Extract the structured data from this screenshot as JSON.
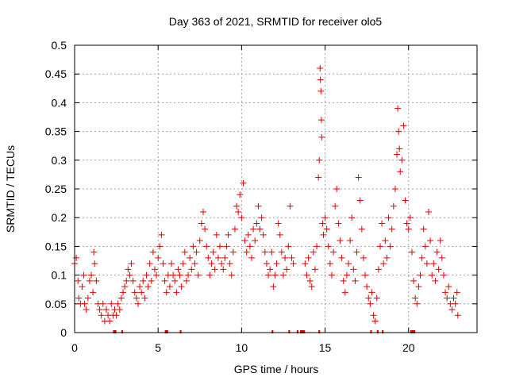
{
  "chart_data": {
    "type": "scatter",
    "title": "Day 363 of 2021, SRMTID for receiver olo5",
    "xlabel": "GPS time / hours",
    "ylabel": "SRMTID / TECUs",
    "xlim": [
      0,
      24.1
    ],
    "ylim": [
      0,
      0.5
    ],
    "xticks": [
      0,
      5,
      10,
      15,
      20
    ],
    "xtick_labels": [
      "0",
      "5",
      "10",
      "15",
      "20"
    ],
    "yticks": [
      0,
      0.05,
      0.1,
      0.15,
      0.2,
      0.25,
      0.3,
      0.35,
      0.4,
      0.45,
      0.5
    ],
    "ytick_labels": [
      "0",
      "0.05",
      "0.1",
      "0.15",
      "0.2",
      "0.25",
      "0.3",
      "0.35",
      "0.4",
      "0.45",
      "0.5"
    ],
    "grid": true,
    "marker": "+",
    "series": [
      {
        "name": "SRMTID",
        "color": "#e00000",
        "points": [
          [
            0.0,
            0.12
          ],
          [
            0.1,
            0.13
          ],
          [
            0.2,
            0.09
          ],
          [
            0.25,
            0.06
          ],
          [
            0.35,
            0.05
          ],
          [
            0.45,
            0.08
          ],
          [
            0.55,
            0.1
          ],
          [
            0.6,
            0.05
          ],
          [
            0.7,
            0.04
          ],
          [
            0.8,
            0.06
          ],
          [
            0.9,
            0.09
          ],
          [
            1.0,
            0.1
          ],
          [
            1.1,
            0.07
          ],
          [
            1.15,
            0.14
          ],
          [
            1.2,
            0.12
          ],
          [
            1.3,
            0.09
          ],
          [
            1.4,
            0.05
          ],
          [
            1.5,
            0.04
          ],
          [
            1.6,
            0.03
          ],
          [
            1.7,
            0.05
          ],
          [
            1.8,
            0.02
          ],
          [
            1.9,
            0.04
          ],
          [
            2.0,
            0.03
          ],
          [
            2.1,
            0.02
          ],
          [
            2.2,
            0.05
          ],
          [
            2.3,
            0.03
          ],
          [
            2.4,
            0.04
          ],
          [
            2.5,
            0.03
          ],
          [
            2.6,
            0.05
          ],
          [
            2.7,
            0.04
          ],
          [
            2.8,
            0.06
          ],
          [
            2.9,
            0.07
          ],
          [
            3.0,
            0.08
          ],
          [
            3.1,
            0.09
          ],
          [
            3.2,
            0.11
          ],
          [
            3.3,
            0.1
          ],
          [
            3.4,
            0.12
          ],
          [
            3.5,
            0.09
          ],
          [
            3.6,
            0.07
          ],
          [
            3.7,
            0.06
          ],
          [
            3.8,
            0.05
          ],
          [
            3.9,
            0.08
          ],
          [
            4.0,
            0.07
          ],
          [
            4.1,
            0.09
          ],
          [
            4.2,
            0.06
          ],
          [
            4.3,
            0.1
          ],
          [
            4.4,
            0.08
          ],
          [
            4.5,
            0.12
          ],
          [
            4.6,
            0.09
          ],
          [
            4.7,
            0.14
          ],
          [
            4.8,
            0.11
          ],
          [
            4.9,
            0.1
          ],
          [
            5.0,
            0.13
          ],
          [
            5.1,
            0.15
          ],
          [
            5.2,
            0.17
          ],
          [
            5.3,
            0.12
          ],
          [
            5.4,
            0.09
          ],
          [
            5.5,
            0.07
          ],
          [
            5.6,
            0.1
          ],
          [
            5.7,
            0.08
          ],
          [
            5.8,
            0.12
          ],
          [
            5.9,
            0.1
          ],
          [
            6.0,
            0.09
          ],
          [
            6.1,
            0.07
          ],
          [
            6.2,
            0.11
          ],
          [
            6.3,
            0.1
          ],
          [
            6.4,
            0.08
          ],
          [
            6.5,
            0.12
          ],
          [
            6.6,
            0.14
          ],
          [
            6.7,
            0.09
          ],
          [
            6.8,
            0.1
          ],
          [
            6.9,
            0.13
          ],
          [
            7.0,
            0.11
          ],
          [
            7.1,
            0.15
          ],
          [
            7.2,
            0.12
          ],
          [
            7.3,
            0.14
          ],
          [
            7.4,
            0.1
          ],
          [
            7.5,
            0.16
          ],
          [
            7.6,
            0.19
          ],
          [
            7.7,
            0.21
          ],
          [
            7.8,
            0.18
          ],
          [
            7.9,
            0.15
          ],
          [
            8.0,
            0.13
          ],
          [
            8.1,
            0.1
          ],
          [
            8.2,
            0.12
          ],
          [
            8.3,
            0.14
          ],
          [
            8.4,
            0.11
          ],
          [
            8.5,
            0.17
          ],
          [
            8.6,
            0.13
          ],
          [
            8.7,
            0.15
          ],
          [
            8.8,
            0.12
          ],
          [
            8.9,
            0.11
          ],
          [
            9.0,
            0.13
          ],
          [
            9.1,
            0.15
          ],
          [
            9.2,
            0.17
          ],
          [
            9.3,
            0.12
          ],
          [
            9.4,
            0.1
          ],
          [
            9.5,
            0.14
          ],
          [
            9.6,
            0.18
          ],
          [
            9.7,
            0.22
          ],
          [
            9.8,
            0.21
          ],
          [
            9.9,
            0.24
          ],
          [
            10.0,
            0.2
          ],
          [
            10.1,
            0.26
          ],
          [
            10.2,
            0.16
          ],
          [
            10.3,
            0.14
          ],
          [
            10.4,
            0.17
          ],
          [
            10.5,
            0.15
          ],
          [
            10.6,
            0.13
          ],
          [
            10.7,
            0.18
          ],
          [
            10.8,
            0.16
          ],
          [
            10.9,
            0.19
          ],
          [
            11.0,
            0.22
          ],
          [
            11.1,
            0.18
          ],
          [
            11.2,
            0.2
          ],
          [
            11.3,
            0.17
          ],
          [
            11.4,
            0.14
          ],
          [
            11.5,
            0.12
          ],
          [
            11.6,
            0.1
          ],
          [
            11.7,
            0.11
          ],
          [
            11.8,
            0.14
          ],
          [
            11.9,
            0.08
          ],
          [
            12.0,
            0.1
          ],
          [
            12.1,
            0.12
          ],
          [
            12.2,
            0.19
          ],
          [
            12.3,
            0.17
          ],
          [
            12.4,
            0.14
          ],
          [
            12.5,
            0.1
          ],
          [
            12.6,
            0.13
          ],
          [
            12.7,
            0.11
          ],
          [
            12.8,
            0.15
          ],
          [
            12.9,
            0.22
          ],
          [
            13.0,
            0.13
          ],
          [
            13.1,
            0.12
          ],
          [
            13.8,
            0.12
          ],
          [
            13.9,
            0.1
          ],
          [
            14.0,
            0.13
          ],
          [
            14.1,
            0.09
          ],
          [
            14.2,
            0.08
          ],
          [
            14.3,
            0.14
          ],
          [
            14.4,
            0.11
          ],
          [
            14.5,
            0.15
          ],
          [
            14.6,
            0.27
          ],
          [
            14.65,
            0.3
          ],
          [
            14.7,
            0.46
          ],
          [
            14.72,
            0.44
          ],
          [
            14.75,
            0.42
          ],
          [
            14.78,
            0.37
          ],
          [
            14.8,
            0.34
          ],
          [
            14.85,
            0.19
          ],
          [
            14.9,
            0.17
          ],
          [
            15.0,
            0.2
          ],
          [
            15.1,
            0.18
          ],
          [
            15.2,
            0.15
          ],
          [
            15.3,
            0.12
          ],
          [
            15.4,
            0.1
          ],
          [
            15.5,
            0.14
          ],
          [
            15.6,
            0.22
          ],
          [
            15.7,
            0.25
          ],
          [
            15.8,
            0.19
          ],
          [
            15.9,
            0.16
          ],
          [
            16.0,
            0.13
          ],
          [
            16.1,
            0.09
          ],
          [
            16.2,
            0.07
          ],
          [
            16.3,
            0.1
          ],
          [
            16.4,
            0.12
          ],
          [
            16.5,
            0.16
          ],
          [
            16.6,
            0.2
          ],
          [
            16.7,
            0.11
          ],
          [
            16.8,
            0.09
          ],
          [
            16.9,
            0.14
          ],
          [
            17.0,
            0.27
          ],
          [
            17.1,
            0.23
          ],
          [
            17.2,
            0.18
          ],
          [
            17.3,
            0.13
          ],
          [
            17.4,
            0.1
          ],
          [
            17.5,
            0.08
          ],
          [
            17.6,
            0.06
          ],
          [
            17.7,
            0.05
          ],
          [
            17.8,
            0.07
          ],
          [
            17.9,
            0.03
          ],
          [
            18.0,
            0.02
          ],
          [
            18.1,
            0.06
          ],
          [
            18.2,
            0.11
          ],
          [
            18.3,
            0.15
          ],
          [
            18.4,
            0.19
          ],
          [
            18.5,
            0.12
          ],
          [
            18.6,
            0.16
          ],
          [
            18.7,
            0.13
          ],
          [
            18.8,
            0.2
          ],
          [
            18.9,
            0.15
          ],
          [
            19.0,
            0.18
          ],
          [
            19.1,
            0.22
          ],
          [
            19.2,
            0.25
          ],
          [
            19.3,
            0.31
          ],
          [
            19.35,
            0.39
          ],
          [
            19.4,
            0.35
          ],
          [
            19.45,
            0.32
          ],
          [
            19.5,
            0.28
          ],
          [
            19.6,
            0.3
          ],
          [
            19.7,
            0.36
          ],
          [
            19.8,
            0.23
          ],
          [
            19.9,
            0.19
          ],
          [
            20.0,
            0.18
          ],
          [
            20.1,
            0.2
          ],
          [
            20.2,
            0.14
          ],
          [
            20.3,
            0.09
          ],
          [
            20.4,
            0.06
          ],
          [
            20.5,
            0.05
          ],
          [
            20.6,
            0.08
          ],
          [
            20.7,
            0.1
          ],
          [
            20.8,
            0.13
          ],
          [
            20.9,
            0.18
          ],
          [
            21.0,
            0.15
          ],
          [
            21.1,
            0.12
          ],
          [
            21.2,
            0.21
          ],
          [
            21.3,
            0.16
          ],
          [
            21.4,
            0.1
          ],
          [
            21.5,
            0.12
          ],
          [
            21.6,
            0.09
          ],
          [
            21.7,
            0.14
          ],
          [
            21.8,
            0.11
          ],
          [
            21.9,
            0.16
          ],
          [
            22.0,
            0.13
          ],
          [
            22.1,
            0.1
          ],
          [
            22.2,
            0.07
          ],
          [
            22.3,
            0.06
          ],
          [
            22.4,
            0.08
          ],
          [
            22.5,
            0.05
          ],
          [
            22.6,
            0.04
          ],
          [
            22.7,
            0.06
          ],
          [
            22.8,
            0.05
          ],
          [
            22.9,
            0.07
          ],
          [
            22.95,
            0.03
          ]
        ]
      }
    ],
    "gap_markers": [
      [
        2.3,
        2.5
      ],
      [
        2.8,
        2.9
      ],
      [
        5.4,
        5.6
      ],
      [
        6.3,
        6.4
      ],
      [
        11.8,
        11.9
      ],
      [
        12.8,
        12.9
      ],
      [
        13.3,
        13.4
      ],
      [
        13.5,
        13.8
      ],
      [
        14.6,
        14.7
      ],
      [
        17.7,
        17.8
      ],
      [
        18.1,
        18.2
      ],
      [
        18.4,
        18.5
      ],
      [
        20.1,
        20.4
      ]
    ]
  }
}
